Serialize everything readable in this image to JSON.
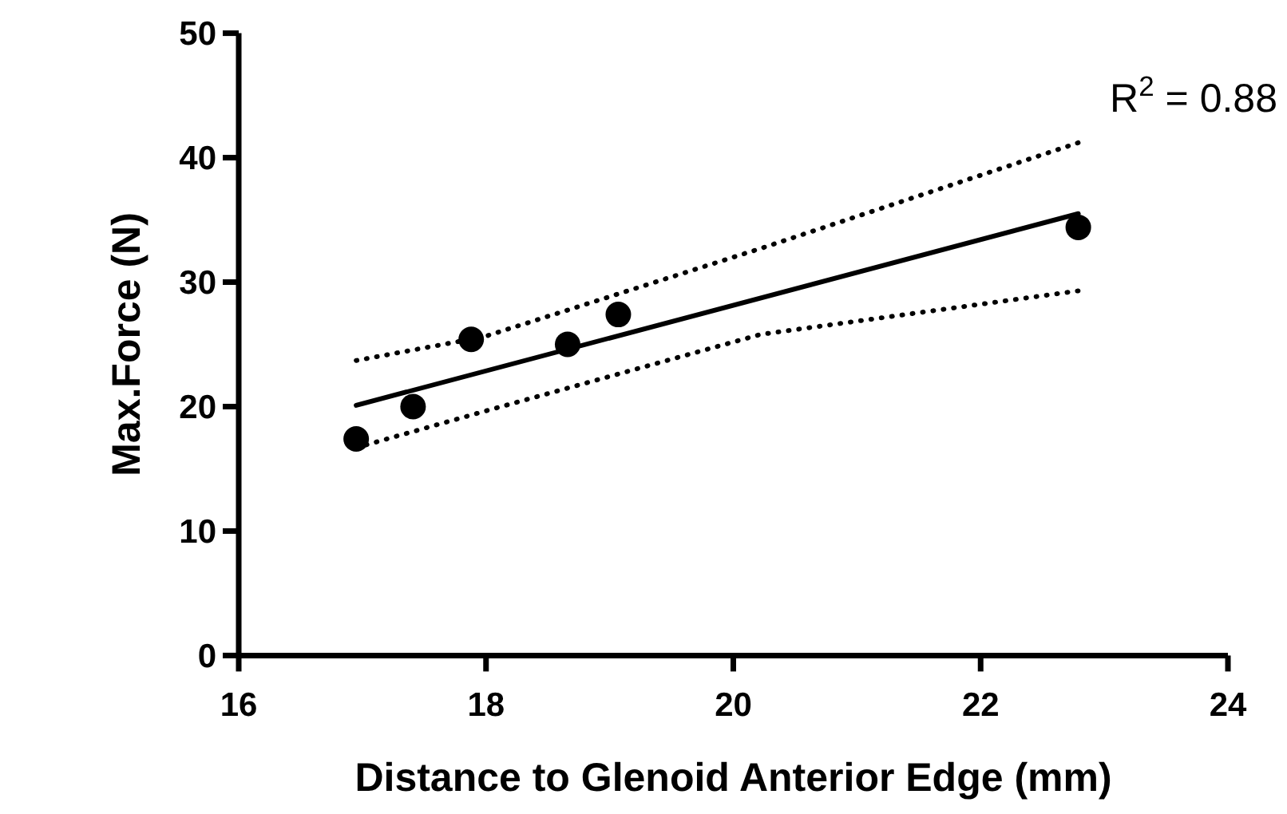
{
  "chart_data": {
    "type": "scatter",
    "xlabel": "Distance to Glenoid Anterior Edge (mm)",
    "ylabel": "Max.Force (N)",
    "xlim": [
      16,
      24
    ],
    "xticks": [
      16,
      18,
      20,
      22,
      24
    ],
    "ylim": [
      0,
      50
    ],
    "yticks": [
      0,
      10,
      20,
      30,
      40,
      50
    ],
    "grid": false,
    "annotations": [
      "R$^{2}$ = 0.88"
    ],
    "series": [
      {
        "color": "#000000",
        "marker": "circle",
        "x": [
          16.95,
          17.41,
          17.88,
          18.66,
          19.07,
          22.79
        ],
        "values": [
          17.4,
          20.0,
          25.4,
          25.0,
          27.4,
          34.4
        ]
      },
      {
        "type": "line",
        "color": "#000000",
        "line_style": "solid",
        "x": [
          16.95,
          22.79
        ],
        "values": [
          20.1,
          35.5
        ]
      },
      {
        "type": "line",
        "color": "#000000",
        "line_style": "dotted",
        "x": [
          16.95,
          17.98,
          20.22,
          22.79
        ],
        "values": [
          23.7,
          25.6,
          32.7,
          41.2
        ]
      },
      {
        "type": "line",
        "color": "#000000",
        "line_style": "dotted",
        "x": [
          16.95,
          17.98,
          20.22,
          22.79
        ],
        "values": [
          16.7,
          19.6,
          25.8,
          29.3
        ]
      }
    ]
  }
}
